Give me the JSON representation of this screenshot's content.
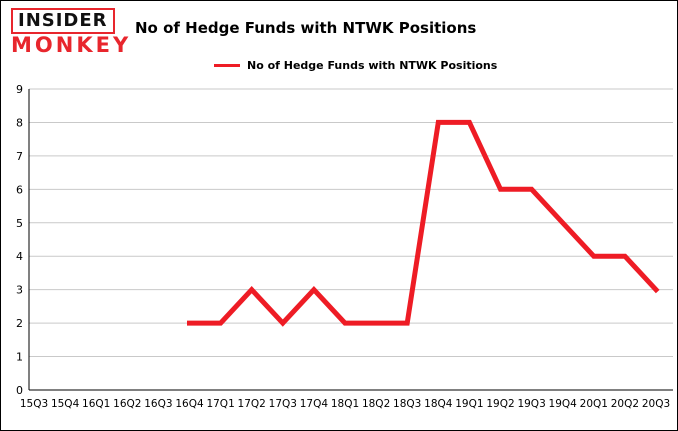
{
  "logo": {
    "line1": "INSIDER",
    "line2": "MONKEY"
  },
  "title": "No of Hedge Funds with NTWK Positions",
  "legend": {
    "label": "No of Hedge Funds with NTWK Positions"
  },
  "colors": {
    "accent_red": "#ee1c25",
    "grid": "#c9c9c9",
    "axis": "#000000",
    "background": "#ffffff"
  },
  "chart_data": {
    "type": "line",
    "title": "No of Hedge Funds with NTWK Positions",
    "categories": [
      "15Q3",
      "15Q4",
      "16Q1",
      "16Q2",
      "16Q3",
      "16Q4",
      "17Q1",
      "17Q2",
      "17Q3",
      "17Q4",
      "18Q1",
      "18Q2",
      "18Q3",
      "18Q4",
      "19Q1",
      "19Q2",
      "19Q3",
      "19Q4",
      "20Q1",
      "20Q2",
      "20Q3"
    ],
    "series": [
      {
        "name": "No of Hedge Funds with NTWK Positions",
        "values": [
          null,
          null,
          null,
          null,
          null,
          2,
          2,
          3,
          2,
          3,
          2,
          2,
          2,
          8,
          8,
          6,
          6,
          5,
          4,
          4,
          3
        ]
      }
    ],
    "xlabel": "",
    "ylabel": "",
    "ylim": [
      0,
      9
    ],
    "yticks": [
      0,
      1,
      2,
      3,
      4,
      5,
      6,
      7,
      8,
      9
    ],
    "grid": true,
    "legend_position": "top",
    "line_color": "#ee1c25",
    "line_width": 5
  }
}
